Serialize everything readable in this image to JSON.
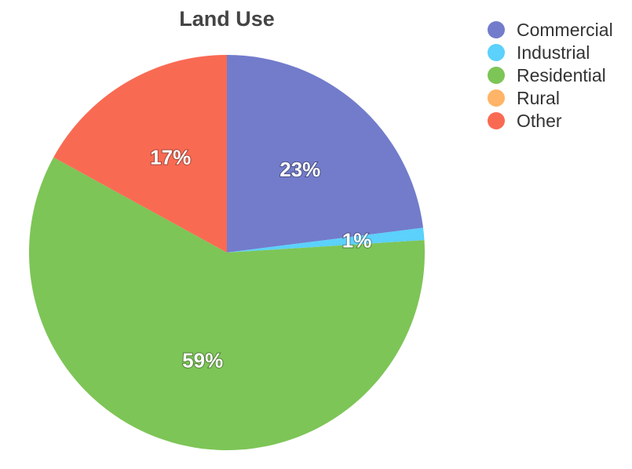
{
  "chart_data": {
    "type": "pie",
    "title": "Land Use",
    "legend_position": "top-right",
    "slices": [
      {
        "name": "Commercial",
        "value": 23,
        "label": "23%",
        "color": "#727ccb"
      },
      {
        "name": "Industrial",
        "value": 1,
        "label": "1%",
        "color": "#5bd1fb"
      },
      {
        "name": "Residential",
        "value": 59,
        "label": "59%",
        "color": "#7dc557"
      },
      {
        "name": "Rural",
        "value": 0,
        "label": "",
        "color": "#ffb467"
      },
      {
        "name": "Other",
        "value": 17,
        "label": "17%",
        "color": "#f96a53"
      }
    ]
  }
}
